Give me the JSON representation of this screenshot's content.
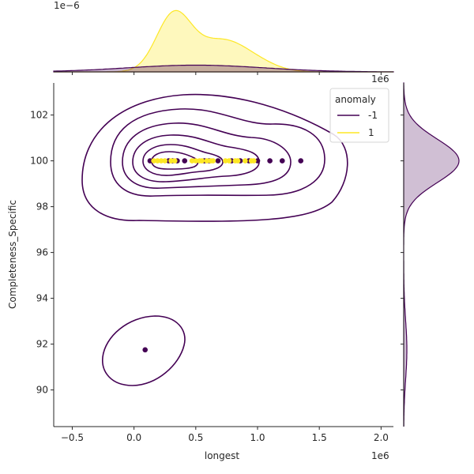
{
  "chart_data": {
    "type": "scatter",
    "subtype": "jointplot-kde-contour-with-marginals",
    "x_axis": {
      "label": "longest",
      "range": [
        -0.65,
        2.1
      ],
      "ticks": [
        -0.5,
        0.0,
        0.5,
        1.0,
        1.5,
        2.0
      ],
      "tick_labels": [
        "−0.5",
        "0.0",
        "0.5",
        "1.0",
        "1.5",
        "2.0"
      ],
      "offset_text": "1e6"
    },
    "y_axis": {
      "label": "Completeness_Specific",
      "range": [
        88.4,
        103.4
      ],
      "ticks": [
        90,
        92,
        94,
        96,
        98,
        100,
        102
      ],
      "tick_labels": [
        "90",
        "92",
        "94",
        "96",
        "98",
        "100",
        "102"
      ]
    },
    "top_marginal": {
      "offset_text": "1e−6",
      "x_offset_text": "1e6"
    },
    "grid": false,
    "legend": {
      "title": "anomaly",
      "placement": "top-right",
      "entries": [
        {
          "label": "-1",
          "color": "#440154"
        },
        {
          "label": "1",
          "color": "#fde725"
        }
      ]
    },
    "colors": {
      "anomaly_neg": "#440154",
      "anomaly_pos": "#fde725"
    },
    "series": [
      {
        "name": "-1",
        "color": "#440154",
        "points": [
          [
            0.13,
            100
          ],
          [
            0.28,
            100
          ],
          [
            0.31,
            100
          ],
          [
            0.35,
            100
          ],
          [
            0.41,
            100
          ],
          [
            0.57,
            100
          ],
          [
            0.61,
            100
          ],
          [
            0.68,
            100
          ],
          [
            0.79,
            100
          ],
          [
            0.86,
            100
          ],
          [
            0.93,
            100
          ],
          [
            1.0,
            100
          ],
          [
            1.1,
            100
          ],
          [
            1.2,
            100
          ],
          [
            1.35,
            100
          ],
          [
            0.09,
            91.75
          ]
        ]
      },
      {
        "name": "1",
        "color": "#fde725",
        "points": [
          [
            0.16,
            100
          ],
          [
            0.19,
            100
          ],
          [
            0.22,
            100
          ],
          [
            0.25,
            100
          ],
          [
            0.3,
            100
          ],
          [
            0.33,
            100
          ],
          [
            0.47,
            100
          ],
          [
            0.5,
            100
          ],
          [
            0.53,
            100
          ],
          [
            0.55,
            100
          ],
          [
            0.59,
            100
          ],
          [
            0.62,
            100
          ],
          [
            0.64,
            100
          ],
          [
            0.74,
            100
          ],
          [
            0.77,
            100
          ],
          [
            0.82,
            100
          ],
          [
            0.84,
            100
          ],
          [
            0.9,
            100
          ],
          [
            0.95,
            100
          ],
          [
            0.97,
            100
          ]
        ]
      }
    ]
  }
}
